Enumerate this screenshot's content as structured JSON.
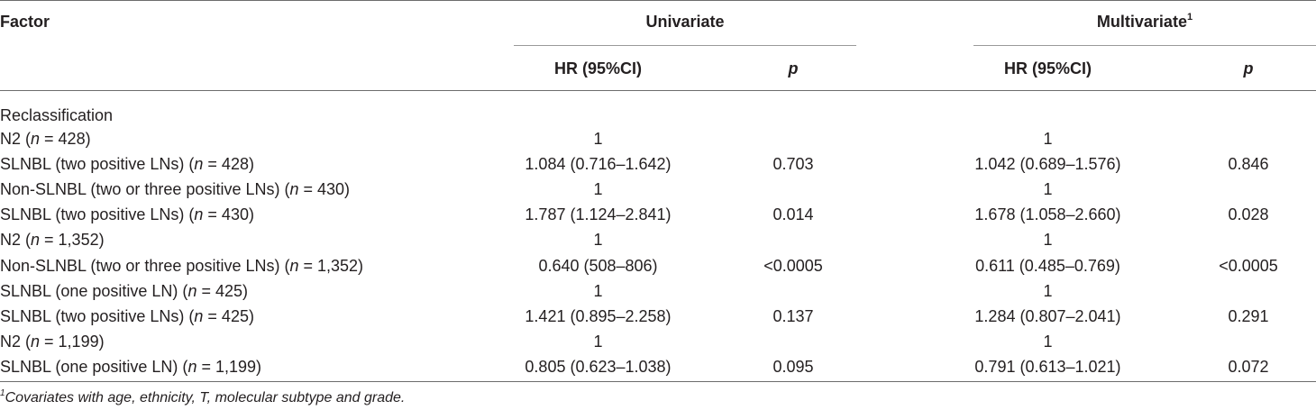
{
  "header": {
    "factor": "Factor",
    "univariate": "Univariate",
    "multivariate": "Multivariate",
    "multivariate_sup": "1",
    "hr": "HR (95%CI)",
    "p": "p"
  },
  "section_label": "Reclassification",
  "rows": [
    {
      "pre": "N2 (",
      "n": "n",
      "post": " = 428)",
      "uni_hr": "1",
      "uni_p": "",
      "multi_hr": "1",
      "multi_p": ""
    },
    {
      "pre": "SLNBL (two positive LNs) (",
      "n": "n",
      "post": " = 428)",
      "uni_hr": "1.084 (0.716–1.642)",
      "uni_p": "0.703",
      "multi_hr": "1.042 (0.689–1.576)",
      "multi_p": "0.846"
    },
    {
      "pre": "Non-SLNBL (two or three positive LNs) (",
      "n": "n",
      "post": " = 430)",
      "uni_hr": "1",
      "uni_p": "",
      "multi_hr": "1",
      "multi_p": ""
    },
    {
      "pre": "SLNBL (two positive LNs) (",
      "n": "n",
      "post": " = 430)",
      "uni_hr": "1.787 (1.124–2.841)",
      "uni_p": "0.014",
      "multi_hr": "1.678 (1.058–2.660)",
      "multi_p": "0.028"
    },
    {
      "pre": "N2 (",
      "n": "n",
      "post": " = 1,352)",
      "uni_hr": "1",
      "uni_p": "",
      "multi_hr": "1",
      "multi_p": ""
    },
    {
      "pre": "Non-SLNBL (two or three positive LNs) (",
      "n": "n",
      "post": " = 1,352)",
      "uni_hr": "0.640 (508–806)",
      "uni_p": "<0.0005",
      "multi_hr": "0.611 (0.485–0.769)",
      "multi_p": "<0.0005"
    },
    {
      "pre": "SLNBL (one positive LN) (",
      "n": "n",
      "post": " = 425)",
      "uni_hr": "1",
      "uni_p": "",
      "multi_hr": "1",
      "multi_p": ""
    },
    {
      "pre": "SLNBL (two positive LNs) (",
      "n": "n",
      "post": " = 425)",
      "uni_hr": "1.421 (0.895–2.258)",
      "uni_p": "0.137",
      "multi_hr": "1.284 (0.807–2.041)",
      "multi_p": "0.291"
    },
    {
      "pre": "N2 (",
      "n": "n",
      "post": " = 1,199)",
      "uni_hr": "1",
      "uni_p": "",
      "multi_hr": "1",
      "multi_p": ""
    },
    {
      "pre": "SLNBL (one positive LN) (",
      "n": "n",
      "post": " = 1,199)",
      "uni_hr": "0.805 (0.623–1.038)",
      "uni_p": "0.095",
      "multi_hr": "0.791 (0.613–1.021)",
      "multi_p": "0.072"
    }
  ],
  "footnote": {
    "sup": "1",
    "text": "Covariates with age, ethnicity, T, molecular subtype and grade."
  }
}
